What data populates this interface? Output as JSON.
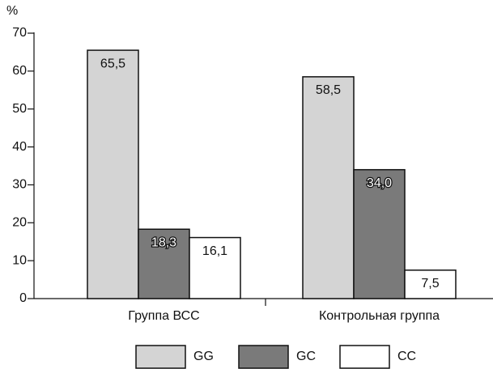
{
  "chart_data": {
    "type": "bar",
    "y_label": "%",
    "categories": [
      "Группа ВСС",
      "Контрольная группа"
    ],
    "series": [
      {
        "name": "GG",
        "color": "#d4d4d4",
        "values": [
          65.5,
          58.5
        ],
        "value_labels": [
          "65,5",
          "58,5"
        ]
      },
      {
        "name": "GC",
        "color": "#7a7a7a",
        "values": [
          18.3,
          34.0
        ],
        "value_labels": [
          "18,3",
          "34,0"
        ]
      },
      {
        "name": "CC",
        "color": "#ffffff",
        "values": [
          16.1,
          7.5
        ],
        "value_labels": [
          "16,1",
          "7,5"
        ]
      }
    ],
    "ylim": [
      0,
      70
    ],
    "yticks": [
      0,
      10,
      20,
      30,
      40,
      50,
      60,
      70
    ],
    "grid": false
  }
}
